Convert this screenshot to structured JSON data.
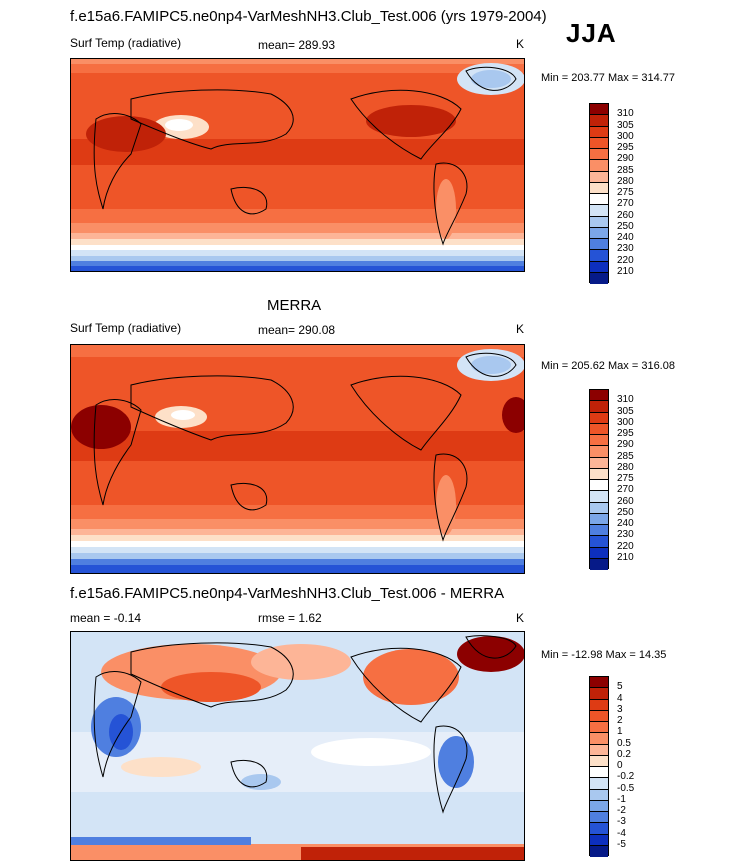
{
  "main_title": "f.e15a6.FAMIPC5.ne0np4-VarMeshNH3.Club_Test.006 (yrs 1979-2004)",
  "season": "JJA",
  "chart_data": [
    {
      "type": "heatmap",
      "panel": "model",
      "title": "",
      "variable": "Surf Temp (radiative)",
      "mean_label": "mean=",
      "mean": "289.93",
      "units": "K",
      "min_label": "Min =",
      "min": "203.77",
      "max_label": "Max =",
      "max": "314.77",
      "colorbar_labels": [
        "310",
        "305",
        "300",
        "295",
        "290",
        "285",
        "280",
        "275",
        "270",
        "260",
        "250",
        "240",
        "230",
        "220",
        "210"
      ],
      "colorbar_colors": [
        "#8c0000",
        "#c02208",
        "#de3b14",
        "#ee5528",
        "#f66f42",
        "#fa8f66",
        "#fdb597",
        "#fde0c8",
        "#ffffff",
        "#d3e4f6",
        "#a9c8ef",
        "#7ba6e8",
        "#4f7fe0",
        "#2553d6",
        "#0d2fbe",
        "#061a88"
      ]
    },
    {
      "type": "heatmap",
      "panel": "obs",
      "title": "MERRA",
      "variable": "Surf Temp (radiative)",
      "mean_label": "mean=",
      "mean": "290.08",
      "units": "K",
      "min_label": "Min =",
      "min": "205.62",
      "max_label": "Max =",
      "max": "316.08",
      "colorbar_labels": [
        "310",
        "305",
        "300",
        "295",
        "290",
        "285",
        "280",
        "275",
        "270",
        "260",
        "250",
        "240",
        "230",
        "220",
        "210"
      ],
      "colorbar_colors": [
        "#8c0000",
        "#c02208",
        "#de3b14",
        "#ee5528",
        "#f66f42",
        "#fa8f66",
        "#fdb597",
        "#fde0c8",
        "#ffffff",
        "#d3e4f6",
        "#a9c8ef",
        "#7ba6e8",
        "#4f7fe0",
        "#2553d6",
        "#0d2fbe",
        "#061a88"
      ]
    },
    {
      "type": "heatmap",
      "panel": "diff",
      "title": "f.e15a6.FAMIPC5.ne0np4-VarMeshNH3.Club_Test.006 - MERRA",
      "mean_label": "mean =",
      "mean": "-0.14",
      "rmse_label": "rmse =",
      "rmse": "1.62",
      "units": "K",
      "min_label": "Min =",
      "min": "-12.98",
      "max_label": "Max =",
      "max": "14.35",
      "colorbar_labels": [
        "5",
        "4",
        "3",
        "2",
        "1",
        "0.5",
        "0.2",
        "0",
        "-0.2",
        "-0.5",
        "-1",
        "-2",
        "-3",
        "-4",
        "-5"
      ],
      "colorbar_colors": [
        "#8c0000",
        "#c02208",
        "#de3b14",
        "#ee5528",
        "#f66f42",
        "#fa8f66",
        "#fdb597",
        "#fde0c8",
        "#ffffff",
        "#d3e4f6",
        "#a9c8ef",
        "#7ba6e8",
        "#4f7fe0",
        "#2553d6",
        "#0d2fbe",
        "#061a88"
      ]
    }
  ]
}
